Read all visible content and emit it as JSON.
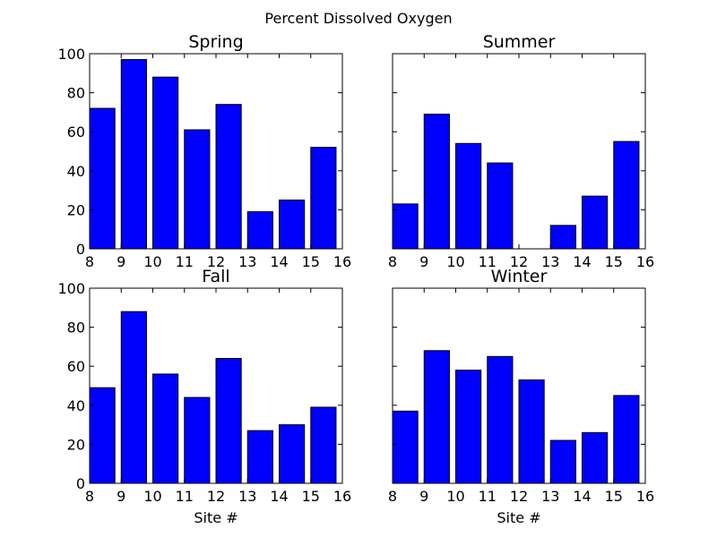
{
  "figure": {
    "suptitle": "Percent Dissolved Oxygen"
  },
  "chart_data": [
    {
      "type": "bar",
      "title": "Spring",
      "xlabel": "",
      "ylabel": "",
      "x": [
        8,
        9,
        10,
        11,
        12,
        13,
        14,
        15
      ],
      "values": [
        72,
        97,
        88,
        61,
        74,
        19,
        25,
        52
      ],
      "xlim": [
        8,
        16
      ],
      "ylim": [
        0,
        100
      ],
      "xticks": [
        8,
        9,
        10,
        11,
        12,
        13,
        14,
        15,
        16
      ],
      "yticks": [
        0,
        20,
        40,
        60,
        80,
        100
      ],
      "show_yticklabels": true,
      "color": "#0000ff",
      "grid": false
    },
    {
      "type": "bar",
      "title": "Summer",
      "xlabel": "",
      "ylabel": "",
      "x": [
        8,
        9,
        10,
        11,
        12,
        13,
        14,
        15
      ],
      "values": [
        23,
        69,
        54,
        44,
        0,
        12,
        27,
        55
      ],
      "xlim": [
        8,
        16
      ],
      "ylim": [
        0,
        100
      ],
      "xticks": [
        8,
        9,
        10,
        11,
        12,
        13,
        14,
        15,
        16
      ],
      "yticks": [
        0,
        20,
        40,
        60,
        80,
        100
      ],
      "show_yticklabels": false,
      "color": "#0000ff",
      "grid": false
    },
    {
      "type": "bar",
      "title": "Fall",
      "xlabel": "Site #",
      "ylabel": "",
      "x": [
        8,
        9,
        10,
        11,
        12,
        13,
        14,
        15
      ],
      "values": [
        49,
        88,
        56,
        44,
        64,
        27,
        30,
        39
      ],
      "xlim": [
        8,
        16
      ],
      "ylim": [
        0,
        100
      ],
      "xticks": [
        8,
        9,
        10,
        11,
        12,
        13,
        14,
        15,
        16
      ],
      "yticks": [
        0,
        20,
        40,
        60,
        80,
        100
      ],
      "show_yticklabels": true,
      "color": "#0000ff",
      "grid": false
    },
    {
      "type": "bar",
      "title": "Winter",
      "xlabel": "Site #",
      "ylabel": "",
      "x": [
        8,
        9,
        10,
        11,
        12,
        13,
        14,
        15
      ],
      "values": [
        37,
        68,
        58,
        65,
        53,
        22,
        26,
        45
      ],
      "xlim": [
        8,
        16
      ],
      "ylim": [
        0,
        100
      ],
      "xticks": [
        8,
        9,
        10,
        11,
        12,
        13,
        14,
        15,
        16
      ],
      "yticks": [
        0,
        20,
        40,
        60,
        80,
        100
      ],
      "show_yticklabels": false,
      "color": "#0000ff",
      "grid": false
    }
  ]
}
